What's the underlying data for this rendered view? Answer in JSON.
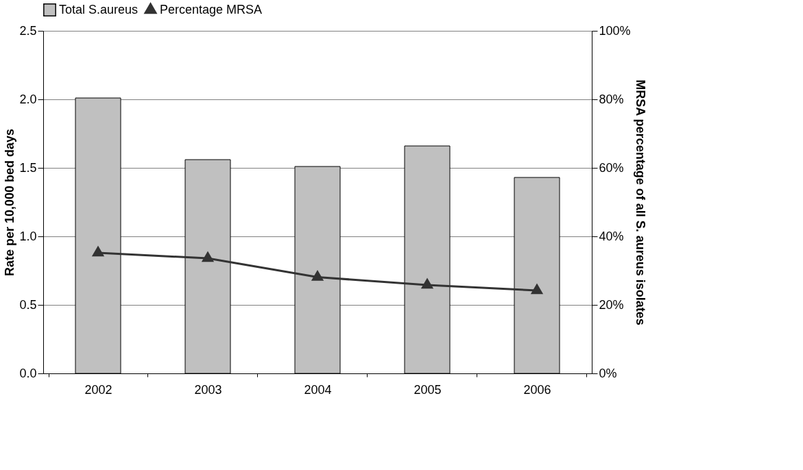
{
  "chart_data": {
    "type": "bar",
    "categories": [
      "2002",
      "2003",
      "2004",
      "2005",
      "2006"
    ],
    "ylabel": "Rate per 10,000 bed days",
    "y2label": "MRSA percentage of all S. aureus isolates",
    "ylim": [
      0,
      2.5
    ],
    "yticks": [
      {
        "value": 0,
        "label": "0.0"
      },
      {
        "value": 0.5,
        "label": "0.5"
      },
      {
        "value": 1,
        "label": "1.0"
      },
      {
        "value": 1.5,
        "label": "1.5"
      },
      {
        "value": 2,
        "label": "2.0"
      },
      {
        "value": 2.5,
        "label": "2.5"
      }
    ],
    "y2lim": [
      0,
      100
    ],
    "y2ticks": [
      {
        "value": 0,
        "label": "0%"
      },
      {
        "value": 20,
        "label": "20%"
      },
      {
        "value": 40,
        "label": "40%"
      },
      {
        "value": 60,
        "label": "60%"
      },
      {
        "value": 80,
        "label": "80%"
      },
      {
        "value": 100,
        "label": "100%"
      }
    ],
    "grid": "y",
    "legend": "top",
    "series": [
      {
        "name": "Total S.aureus",
        "color": "#c0c0c0",
        "values": [
          2.01,
          1.56,
          1.51,
          1.66,
          1.43
        ]
      },
      {
        "name": "Percentage MRSA",
        "type": "line",
        "axis": "y2",
        "color": "#333333",
        "marker": "triangle",
        "values": [
          35.2,
          33.6,
          28.1,
          25.8,
          24.2
        ]
      }
    ]
  }
}
